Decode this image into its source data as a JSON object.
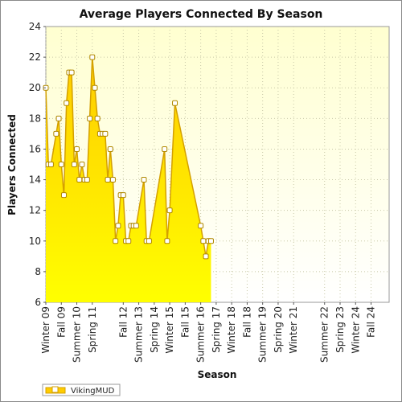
{
  "chart_data": {
    "type": "area",
    "title": "Average Players Connected By Season",
    "xlabel": "Season",
    "ylabel": "Players Connected",
    "ylim": [
      6,
      24
    ],
    "yticks": [
      6,
      8,
      10,
      12,
      14,
      16,
      18,
      20,
      22,
      24
    ],
    "grid": true,
    "legend_position": "bottom-left",
    "colors": {
      "fill_top": "#ffcc00",
      "fill_bottom": "#ffff00",
      "line": "#d4a000",
      "plot_bg_top": "#ffffd0",
      "plot_bg_bottom": "#ffffff"
    },
    "x_tick_labels": [
      {
        "label": "Winter 09",
        "x": 0
      },
      {
        "label": "Fall 09",
        "x": 3
      },
      {
        "label": "Summer 10",
        "x": 6
      },
      {
        "label": "Spring 11",
        "x": 9
      },
      {
        "label": "Fall 12",
        "x": 15
      },
      {
        "label": "Summer 13",
        "x": 18
      },
      {
        "label": "Spring 14",
        "x": 21
      },
      {
        "label": "Winter 15",
        "x": 24
      },
      {
        "label": "Fall 15",
        "x": 27
      },
      {
        "label": "Summer 16",
        "x": 30
      },
      {
        "label": "Spring 17",
        "x": 33
      },
      {
        "label": "Winter 18",
        "x": 36
      },
      {
        "label": "Fall 18",
        "x": 39
      },
      {
        "label": "Summer 19",
        "x": 42
      },
      {
        "label": "Spring 20",
        "x": 45
      },
      {
        "label": "Winter 21",
        "x": 48
      },
      {
        "label": "Summer 22",
        "x": 54
      },
      {
        "label": "Spring 23",
        "x": 57
      },
      {
        "label": "Winter 24",
        "x": 60
      },
      {
        "label": "Fall 24",
        "x": 63
      }
    ],
    "series": [
      {
        "name": "VikingMUD",
        "points": [
          [
            0,
            20
          ],
          [
            0.5,
            15
          ],
          [
            1,
            15
          ],
          [
            2,
            17
          ],
          [
            2.5,
            18
          ],
          [
            3,
            15
          ],
          [
            3.5,
            13
          ],
          [
            4,
            19
          ],
          [
            4.5,
            21
          ],
          [
            5,
            21
          ],
          [
            5.5,
            15
          ],
          [
            6,
            16
          ],
          [
            6.5,
            14
          ],
          [
            7,
            15
          ],
          [
            7.5,
            14
          ],
          [
            8,
            14
          ],
          [
            8.5,
            18
          ],
          [
            9,
            22
          ],
          [
            9.5,
            20
          ],
          [
            10,
            18
          ],
          [
            10.5,
            17
          ],
          [
            11,
            17
          ],
          [
            11.5,
            17
          ],
          [
            12,
            14
          ],
          [
            12.5,
            16
          ],
          [
            13,
            14
          ],
          [
            13.5,
            10
          ],
          [
            14,
            11
          ],
          [
            14.5,
            13
          ],
          [
            15,
            13
          ],
          [
            15.5,
            10
          ],
          [
            16,
            10
          ],
          [
            16.5,
            11
          ],
          [
            17,
            11
          ],
          [
            17.5,
            11
          ],
          [
            19,
            14
          ],
          [
            19.5,
            10
          ],
          [
            20,
            10
          ],
          [
            23,
            16
          ],
          [
            23.5,
            10
          ],
          [
            24,
            12
          ],
          [
            25,
            19
          ],
          [
            30,
            11
          ],
          [
            30.5,
            10
          ],
          [
            31,
            9
          ],
          [
            31.5,
            10
          ],
          [
            32,
            10
          ]
        ]
      }
    ]
  }
}
